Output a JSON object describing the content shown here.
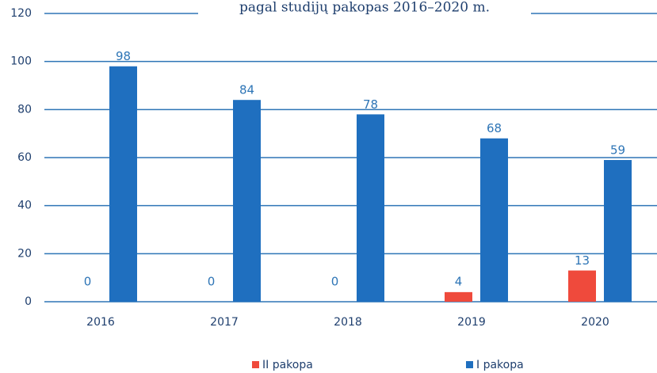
{
  "chart_data": {
    "type": "bar",
    "title": "pagal studijų pakopas 2016–2020 m.",
    "categories": [
      "2016",
      "2017",
      "2018",
      "2019",
      "2020"
    ],
    "series": [
      {
        "name": "II pakopa",
        "color": "#ef4a3c",
        "values": [
          0,
          0,
          0,
          4,
          13
        ]
      },
      {
        "name": "I pakopa",
        "color": "#1f6fbf",
        "values": [
          98,
          84,
          78,
          68,
          59
        ]
      }
    ],
    "ylim": [
      0,
      120
    ],
    "yticks": [
      0,
      20,
      40,
      60,
      80,
      100,
      120
    ],
    "grid": true,
    "legend": "bottom"
  }
}
